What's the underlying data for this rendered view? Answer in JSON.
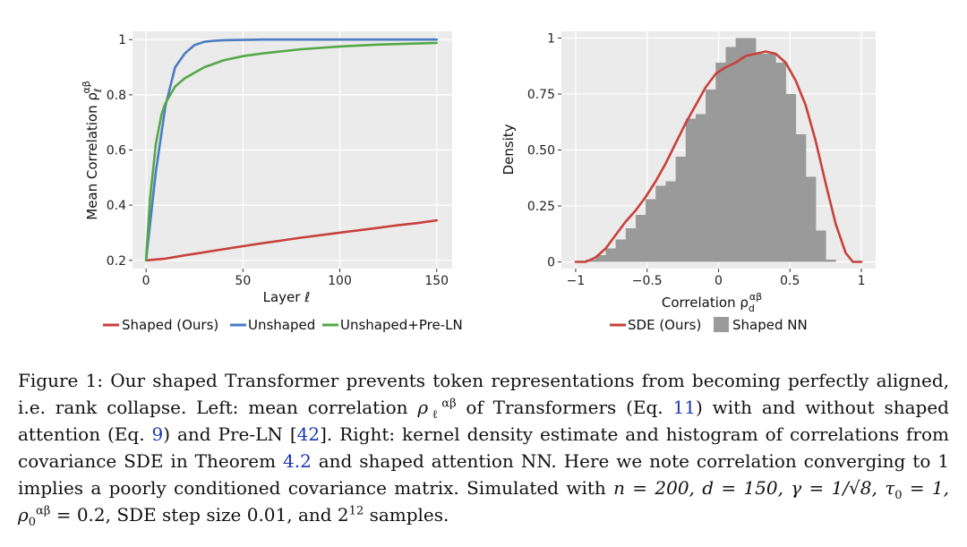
{
  "chart_data": [
    {
      "type": "line",
      "xlabel": "Layer ℓ",
      "ylabel": "Mean Correlation ρ",
      "ylabel_superscript": "αβ",
      "ylabel_subscript": "ℓ",
      "xlim": [
        -7,
        158
      ],
      "ylim": [
        0.17,
        1.03
      ],
      "xticks": [
        0,
        50,
        100,
        150
      ],
      "xtick_labels": [
        "0",
        "50",
        "100",
        "150"
      ],
      "yticks": [
        0.2,
        0.4,
        0.6,
        0.8,
        1
      ],
      "ytick_labels": [
        "0.2",
        "0.4",
        "0.6",
        "0.8",
        "1"
      ],
      "grid": true,
      "legend_position": "below",
      "series": [
        {
          "name": "Shaped (Ours)",
          "color": "#c8413a",
          "x": [
            0,
            10,
            20,
            30,
            40,
            50,
            60,
            70,
            80,
            90,
            100,
            110,
            120,
            130,
            140,
            150
          ],
          "y": [
            0.2,
            0.206,
            0.218,
            0.229,
            0.24,
            0.251,
            0.262,
            0.272,
            0.282,
            0.291,
            0.3,
            0.309,
            0.318,
            0.327,
            0.335,
            0.345
          ]
        },
        {
          "name": "Unshaped",
          "color": "#4a7cc1",
          "x": [
            0,
            5,
            10,
            15,
            20,
            25,
            30,
            35,
            40,
            50,
            60,
            80,
            100,
            150
          ],
          "y": [
            0.2,
            0.52,
            0.76,
            0.9,
            0.95,
            0.98,
            0.992,
            0.996,
            0.998,
            0.999,
            1.0,
            1.0,
            1.0,
            1.0
          ]
        },
        {
          "name": "Unshaped+Pre-LN",
          "color": "#55a848",
          "x": [
            0,
            2,
            5,
            8,
            10,
            15,
            20,
            30,
            40,
            50,
            60,
            80,
            100,
            120,
            150
          ],
          "y": [
            0.2,
            0.42,
            0.62,
            0.73,
            0.77,
            0.83,
            0.86,
            0.9,
            0.925,
            0.94,
            0.95,
            0.965,
            0.975,
            0.982,
            0.988
          ]
        }
      ]
    },
    {
      "type": "bar",
      "subtype": "histogram+line",
      "xlabel": "Correlation ρ",
      "xlabel_superscript": "αβ",
      "xlabel_subscript": "d",
      "ylabel": "Density",
      "xlim": [
        -1.1,
        1.1
      ],
      "ylim": [
        -0.03,
        1.03
      ],
      "xticks": [
        -1,
        -0.5,
        0,
        0.5,
        1
      ],
      "xtick_labels": [
        "−1",
        "−0.5",
        "0",
        "0.5",
        "1"
      ],
      "yticks": [
        0,
        0.25,
        0.5,
        0.75,
        1
      ],
      "ytick_labels": [
        "0",
        "0.25",
        "0.50",
        "0.75",
        "1"
      ],
      "grid": true,
      "legend_position": "below",
      "histogram": {
        "name": "Shaped NN",
        "color": "#9a9a9a",
        "bin_edges": [
          -0.93,
          -0.86,
          -0.79,
          -0.72,
          -0.65,
          -0.58,
          -0.51,
          -0.44,
          -0.37,
          -0.3,
          -0.23,
          -0.16,
          -0.09,
          -0.02,
          0.05,
          0.12,
          0.19,
          0.26,
          0.33,
          0.4,
          0.47,
          0.54,
          0.61,
          0.68,
          0.75,
          0.82,
          0.89,
          0.96
        ],
        "values": [
          0.01,
          0.03,
          0.06,
          0.1,
          0.15,
          0.21,
          0.28,
          0.34,
          0.36,
          0.47,
          0.64,
          0.66,
          0.77,
          0.89,
          0.96,
          1.0,
          1.0,
          0.93,
          0.93,
          0.89,
          0.75,
          0.57,
          0.38,
          0.14,
          0.01,
          0.0,
          0.0
        ]
      },
      "series": [
        {
          "name": "SDE (Ours)",
          "color": "#c8413a",
          "x": [
            -1.0,
            -0.93,
            -0.86,
            -0.79,
            -0.72,
            -0.65,
            -0.58,
            -0.51,
            -0.44,
            -0.37,
            -0.3,
            -0.23,
            -0.16,
            -0.09,
            -0.02,
            0.05,
            0.12,
            0.19,
            0.26,
            0.33,
            0.4,
            0.47,
            0.54,
            0.61,
            0.68,
            0.75,
            0.82,
            0.89,
            0.94,
            0.98,
            1.0
          ],
          "y": [
            0.0,
            0.0,
            0.02,
            0.06,
            0.12,
            0.18,
            0.23,
            0.29,
            0.36,
            0.44,
            0.53,
            0.62,
            0.7,
            0.78,
            0.84,
            0.87,
            0.89,
            0.92,
            0.93,
            0.94,
            0.93,
            0.89,
            0.81,
            0.7,
            0.54,
            0.35,
            0.17,
            0.04,
            0.0,
            0.0,
            0.0
          ]
        }
      ]
    }
  ],
  "caption": {
    "p1": "Figure 1: Our shaped Transformer prevents token representations from becoming perfectly aligned, i.e. rank collapse. Left: mean correlation ",
    "rho": "ρ",
    "rho_sup": "αβ",
    "rho_sub": "ℓ",
    "p2": " of Transformers (Eq. ",
    "ref_eq11": "11",
    "p3": ") with and without shaped attention (Eq. ",
    "ref_eq9": "9",
    "p4": ") and Pre-LN [",
    "ref_42": "42",
    "p5": "]. Right: kernel density estimate and histogram of correlations from covariance SDE in Theorem ",
    "ref_thm": "4.2",
    "p6": " and shaped attention NN. Here we note correlation converging to 1 implies a poorly conditioned covariance matrix. Simulated with ",
    "math": "n = 200, d = 150, γ = 1/√8, τ",
    "tau_sub": "0",
    "math2": " = 1, ρ",
    "rho0_sup": "αβ",
    "rho0_sub": "0",
    "math3": " = 0.2,",
    "p7": " SDE step size 0.01, and 2",
    "two_sup": "12",
    "p8": " samples."
  }
}
